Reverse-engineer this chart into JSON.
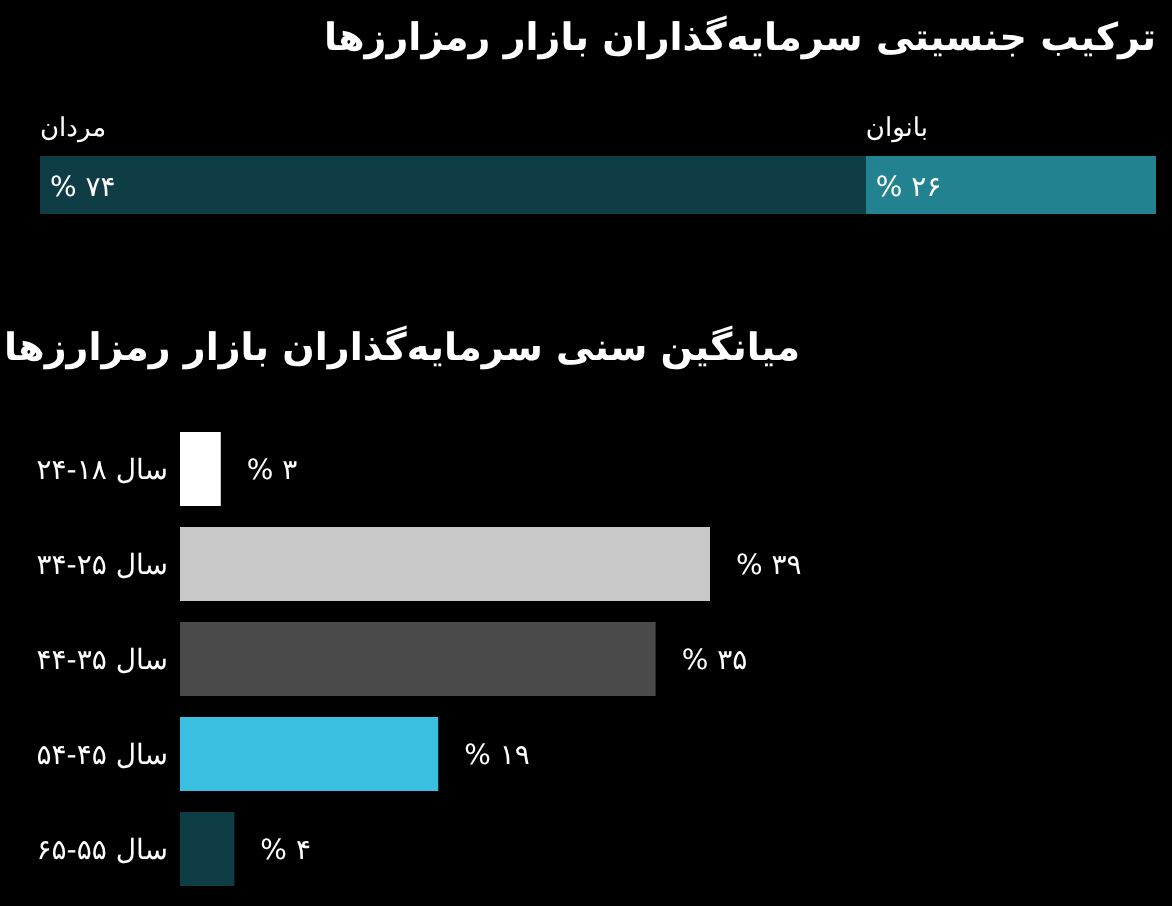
{
  "chart_data": [
    {
      "type": "bar",
      "orientation": "horizontal",
      "stacked": true,
      "title": "ترکیب جنسیتی سرمایه‌گذاران بازار رمزارزها",
      "categories": [
        null
      ],
      "series": [
        {
          "name": "مردان",
          "color": "#0f3d45",
          "values": [
            74
          ],
          "value_labels": [
            "۷۴ %"
          ]
        },
        {
          "name": "بانوان",
          "color": "#23828f",
          "values": [
            26
          ],
          "value_labels": [
            "۲۶ %"
          ]
        }
      ]
    },
    {
      "type": "bar",
      "orientation": "horizontal",
      "title": "میانگین سنی سرمایه‌گذاران بازار رمزارزها",
      "categories": [
        "سال ۱۸-۲۴",
        "سال ۲۵-۳۴",
        "سال ۳۵-۴۴",
        "سال ۴۵-۵۴",
        "سال ۵۵-۶۵"
      ],
      "values": [
        3,
        39,
        35,
        19,
        4
      ],
      "colors": [
        "#ffffff",
        "#c8c8c8",
        "#4a4a4a",
        "#3bbfe0",
        "#0f3d45"
      ],
      "value_labels": [
        "۳ %",
        "۳۹ %",
        "۳۵ %",
        "۱۹ %",
        "۴ %"
      ]
    }
  ]
}
